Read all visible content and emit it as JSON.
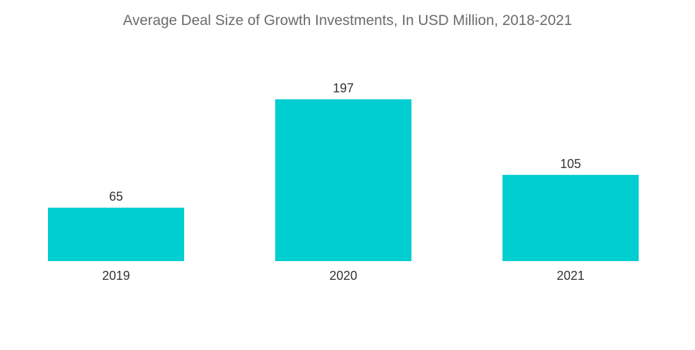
{
  "chart_data": {
    "type": "bar",
    "title": "Average Deal Size of Growth Investments, In USD Million, 2018-2021",
    "categories": [
      "2019",
      "2020",
      "2021"
    ],
    "values": [
      65,
      197,
      105
    ],
    "xlabel": "",
    "ylabel": "",
    "ylim": [
      0,
      197
    ],
    "grid": false,
    "legend": "none",
    "bar_color": "#00CED1"
  }
}
